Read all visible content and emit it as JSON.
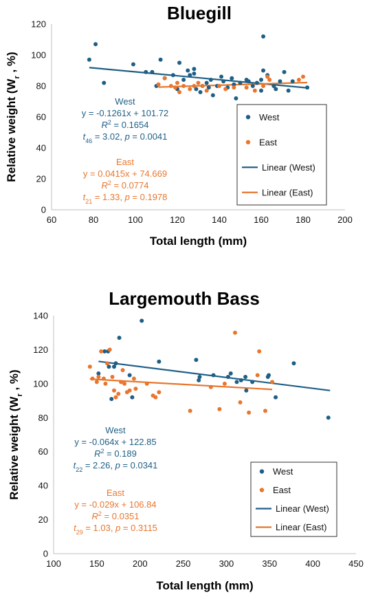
{
  "chart_data": [
    {
      "type": "scatter",
      "title": "Bluegill",
      "xlabel": "Total length (mm)",
      "ylabel_main": "Relative weight (W",
      "ylabel_sub": "r",
      "ylabel_end": " , %)",
      "xlim": [
        60,
        200
      ],
      "ylim": [
        0,
        120
      ],
      "xticks": [
        60,
        80,
        100,
        120,
        140,
        160,
        180,
        200
      ],
      "yticks": [
        0,
        20,
        40,
        60,
        80,
        100,
        120
      ],
      "grid": false,
      "legend_position": "right",
      "series": [
        {
          "name": "West",
          "color": "#1f5f86",
          "points": [
            [
              78,
              97
            ],
            [
              81,
              107
            ],
            [
              85,
              82
            ],
            [
              99,
              94
            ],
            [
              105,
              89
            ],
            [
              108,
              89
            ],
            [
              110,
              80
            ],
            [
              112,
              97
            ],
            [
              114,
              85
            ],
            [
              118,
              87
            ],
            [
              120,
              78
            ],
            [
              121,
              95
            ],
            [
              123,
              84
            ],
            [
              125,
              90
            ],
            [
              126,
              87
            ],
            [
              128,
              91
            ],
            [
              128,
              88
            ],
            [
              129,
              78
            ],
            [
              131,
              76
            ],
            [
              132,
              80
            ],
            [
              134,
              82
            ],
            [
              135,
              79
            ],
            [
              136,
              84
            ],
            [
              137,
              74
            ],
            [
              139,
              80
            ],
            [
              141,
              86
            ],
            [
              142,
              83
            ],
            [
              144,
              79
            ],
            [
              146,
              85
            ],
            [
              147,
              81
            ],
            [
              148,
              72
            ],
            [
              150,
              82
            ],
            [
              153,
              84
            ],
            [
              154,
              83
            ],
            [
              156,
              80
            ],
            [
              158,
              82
            ],
            [
              160,
              77
            ],
            [
              160,
              84
            ],
            [
              161,
              112
            ],
            [
              161,
              90
            ],
            [
              163,
              87
            ],
            [
              166,
              80
            ],
            [
              167,
              78
            ],
            [
              169,
              83
            ],
            [
              171,
              89
            ],
            [
              173,
              77
            ],
            [
              175,
              83
            ],
            [
              182,
              79
            ]
          ]
        },
        {
          "name": "East",
          "color": "#e8762d",
          "points": [
            [
              111,
              81
            ],
            [
              114,
              85
            ],
            [
              117,
              80
            ],
            [
              119,
              79
            ],
            [
              120,
              82
            ],
            [
              121,
              76
            ],
            [
              123,
              80
            ],
            [
              126,
              78
            ],
            [
              128,
              80
            ],
            [
              130,
              82
            ],
            [
              132,
              80
            ],
            [
              134,
              77
            ],
            [
              140,
              80
            ],
            [
              143,
              78
            ],
            [
              147,
              79
            ],
            [
              153,
              79
            ],
            [
              157,
              77
            ],
            [
              161,
              80
            ],
            [
              163,
              86
            ],
            [
              164,
              84
            ],
            [
              178,
              84
            ],
            [
              180,
              86
            ]
          ]
        }
      ],
      "trendlines": [
        {
          "name": "Linear (West)",
          "color": "#1f5f86",
          "slope": -0.1261,
          "intercept": 101.72,
          "x_range": [
            78,
            182
          ]
        },
        {
          "name": "Linear (East)",
          "color": "#e8762d",
          "slope": 0.0415,
          "intercept": 74.669,
          "x_range": [
            111,
            182
          ]
        }
      ],
      "annotations": [
        {
          "color": "#1f5f86",
          "lines": [
            [
              {
                "t": "West"
              }
            ],
            [
              {
                "t": "y = -0.1261x + 101.72"
              }
            ],
            [
              {
                "t": "R",
                "i": true
              },
              {
                "t": "2",
                "sup": true
              },
              {
                "t": " = 0.1654"
              }
            ],
            [
              {
                "t": "t",
                "i": true
              },
              {
                "t": "46",
                "sub": true
              },
              {
                "t": " = 3.02, "
              },
              {
                "t": "p",
                "i": true
              },
              {
                "t": " = 0.0041"
              }
            ]
          ]
        },
        {
          "color": "#e8762d",
          "lines": [
            [
              {
                "t": "East"
              }
            ],
            [
              {
                "t": "y = 0.0415x + 74.669"
              }
            ],
            [
              {
                "t": "R",
                "i": true
              },
              {
                "t": "2",
                "sup": true
              },
              {
                "t": " = 0.0774"
              }
            ],
            [
              {
                "t": "t",
                "i": true
              },
              {
                "t": "21",
                "sub": true
              },
              {
                "t": " = 1.33, "
              },
              {
                "t": "p",
                "i": true
              },
              {
                "t": " = 0.1978"
              }
            ]
          ]
        }
      ],
      "legend_items": [
        "West",
        "East",
        "Linear (West)",
        "Linear (East)"
      ]
    },
    {
      "type": "scatter",
      "title": "Largemouth Bass",
      "xlabel": "Total length (mm)",
      "ylabel_main": "Relative weight (W",
      "ylabel_sub": "r",
      "ylabel_end": " , %)",
      "xlim": [
        100,
        450
      ],
      "ylim": [
        0,
        140
      ],
      "xticks": [
        100,
        150,
        200,
        250,
        300,
        350,
        400,
        450
      ],
      "yticks": [
        0,
        20,
        40,
        60,
        80,
        100,
        120,
        140
      ],
      "grid": false,
      "legend_position": "right",
      "series": [
        {
          "name": "West",
          "color": "#1f5f86",
          "points": [
            [
              152,
              106
            ],
            [
              159,
              119
            ],
            [
              163,
              119
            ],
            [
              164,
              110
            ],
            [
              167,
              91
            ],
            [
              170,
              110
            ],
            [
              172,
              112
            ],
            [
              176,
              127
            ],
            [
              188,
              105
            ],
            [
              191,
              92
            ],
            [
              202,
              137
            ],
            [
              222,
              113
            ],
            [
              265,
              114
            ],
            [
              268,
              102
            ],
            [
              269,
              104
            ],
            [
              285,
              105
            ],
            [
              302,
              104
            ],
            [
              305,
              106
            ],
            [
              312,
              101
            ],
            [
              317,
              102
            ],
            [
              322,
              104
            ],
            [
              323,
              96
            ],
            [
              330,
              101
            ],
            [
              348,
              104
            ],
            [
              349,
              105
            ],
            [
              357,
              92
            ],
            [
              378,
              112
            ],
            [
              418,
              80
            ]
          ]
        },
        {
          "name": "East",
          "color": "#e8762d",
          "points": [
            [
              142,
              110
            ],
            [
              145,
              103
            ],
            [
              150,
              101
            ],
            [
              152,
              104
            ],
            [
              155,
              119
            ],
            [
              158,
              103
            ],
            [
              160,
              100
            ],
            [
              162,
              112
            ],
            [
              165,
              120
            ],
            [
              168,
              104
            ],
            [
              170,
              96
            ],
            [
              172,
              92
            ],
            [
              175,
              94
            ],
            [
              178,
              101
            ],
            [
              180,
              108
            ],
            [
              182,
              100
            ],
            [
              185,
              95
            ],
            [
              188,
              96
            ],
            [
              193,
              103
            ],
            [
              195,
              97
            ],
            [
              208,
              100
            ],
            [
              215,
              93
            ],
            [
              218,
              92
            ],
            [
              222,
              95
            ],
            [
              258,
              84
            ],
            [
              282,
              98
            ],
            [
              292,
              85
            ],
            [
              298,
              100
            ],
            [
              310,
              130
            ],
            [
              316,
              89
            ],
            [
              326,
              83
            ],
            [
              336,
              105
            ],
            [
              338,
              119
            ],
            [
              345,
              84
            ],
            [
              353,
              101
            ]
          ]
        }
      ],
      "trendlines": [
        {
          "name": "Linear (West)",
          "color": "#1f5f86",
          "slope": -0.064,
          "intercept": 122.85,
          "x_range": [
            152,
            420
          ]
        },
        {
          "name": "Linear (East)",
          "color": "#e8762d",
          "slope": -0.029,
          "intercept": 106.84,
          "x_range": [
            142,
            353
          ]
        }
      ],
      "annotations": [
        {
          "color": "#1f5f86",
          "lines": [
            [
              {
                "t": "West"
              }
            ],
            [
              {
                "t": "y = -0.064x + 122.85"
              }
            ],
            [
              {
                "t": "R",
                "i": true
              },
              {
                "t": "2",
                "sup": true
              },
              {
                "t": " = 0.189"
              }
            ],
            [
              {
                "t": "t",
                "i": true
              },
              {
                "t": "22",
                "sub": true
              },
              {
                "t": " = 2.26, "
              },
              {
                "t": "p",
                "i": true
              },
              {
                "t": " = 0.0341"
              }
            ]
          ]
        },
        {
          "color": "#e8762d",
          "lines": [
            [
              {
                "t": "East"
              }
            ],
            [
              {
                "t": "y = -0.029x + 106.84"
              }
            ],
            [
              {
                "t": "R",
                "i": true
              },
              {
                "t": "2",
                "sup": true
              },
              {
                "t": " = 0.0351"
              }
            ],
            [
              {
                "t": "t",
                "i": true
              },
              {
                "t": "29",
                "sub": true
              },
              {
                "t": " = 1.03, "
              },
              {
                "t": "p",
                "i": true
              },
              {
                "t": " = 0.3115"
              }
            ]
          ]
        }
      ],
      "legend_items": [
        "West",
        "East",
        "Linear (West)",
        "Linear (East)"
      ]
    }
  ]
}
